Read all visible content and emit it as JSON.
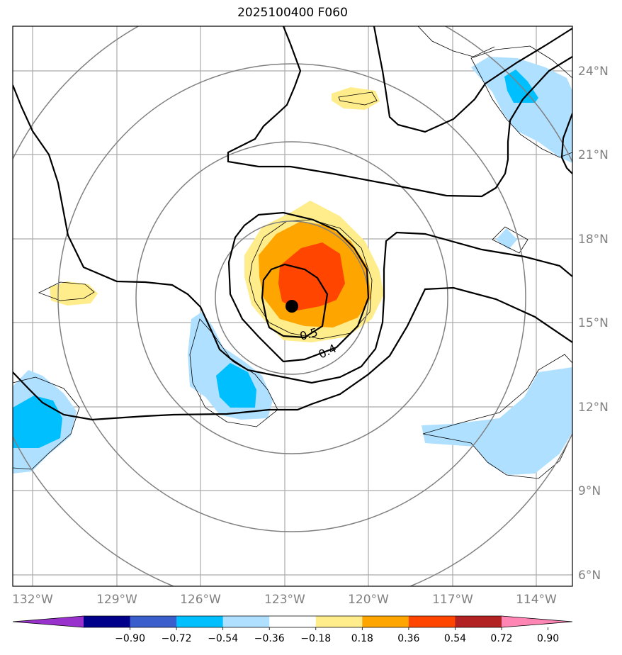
{
  "title": "2025100400 F060",
  "map": {
    "lon_labels": [
      "132°W",
      "129°W",
      "126°W",
      "123°W",
      "120°W",
      "117°W",
      "114°W"
    ],
    "lat_labels": [
      "24°N",
      "21°N",
      "18°N",
      "15°N",
      "12°N",
      "9°N",
      "6°N"
    ],
    "contour_labels": [
      "0.5",
      "0.4"
    ],
    "center_marker": "storm-center"
  },
  "colorbar": {
    "ticks": [
      "−0.90",
      "−0.72",
      "−0.54",
      "−0.36",
      "−0.18",
      "0.18",
      "0.36",
      "0.54",
      "0.72",
      "0.90"
    ],
    "colors": [
      "#9932cc",
      "#00008b",
      "#3a5fcd",
      "#00bfff",
      "#b0e0ff",
      "#ffffff",
      "#ffec8b",
      "#ffa500",
      "#ff4500",
      "#b22222",
      "#ff85b5"
    ]
  }
}
